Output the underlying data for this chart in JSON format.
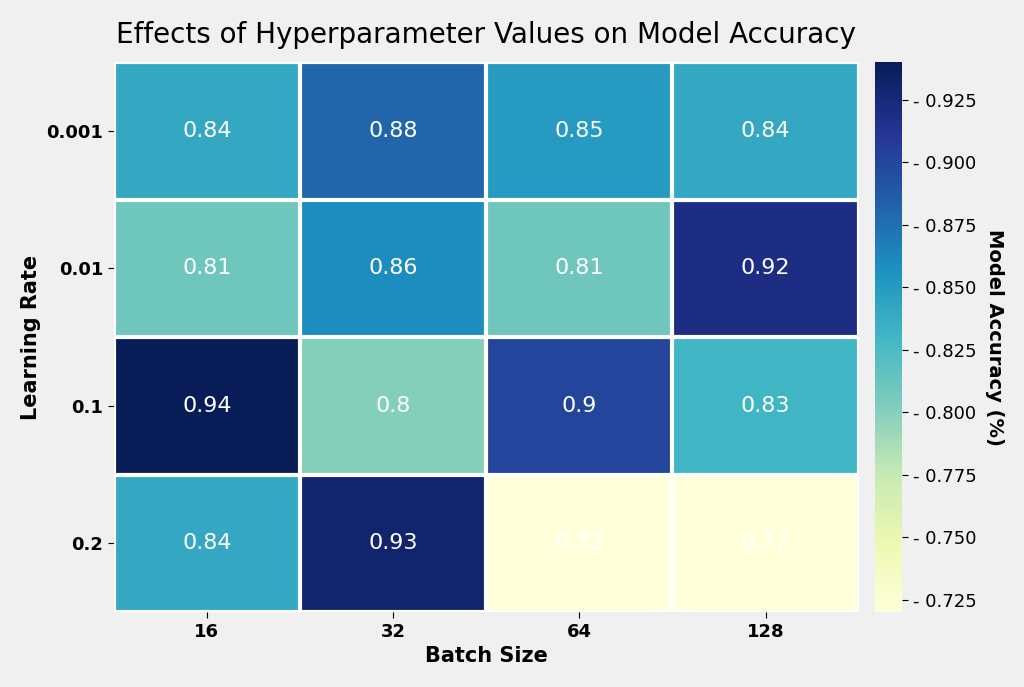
{
  "title": "Effects of Hyperparameter Values on Model Accuracy",
  "xlabel": "Batch Size",
  "ylabel": "Learning Rate",
  "colorbar_label": "Model Accuracy (%)",
  "batch_sizes": [
    "16",
    "32",
    "64",
    "128"
  ],
  "learning_rates": [
    "0.001",
    "0.01",
    "0.1",
    "0.2"
  ],
  "values": [
    [
      0.84,
      0.88,
      0.85,
      0.84
    ],
    [
      0.81,
      0.86,
      0.81,
      0.92
    ],
    [
      0.94,
      0.8,
      0.9,
      0.83
    ],
    [
      0.84,
      0.93,
      0.72,
      0.72
    ]
  ],
  "annot_labels": [
    [
      "0.84",
      "0.88",
      "0.85",
      "0.84"
    ],
    [
      "0.81",
      "0.86",
      "0.81",
      "0.92"
    ],
    [
      "0.94",
      "0.8",
      "0.9",
      "0.83"
    ],
    [
      "0.84",
      "0.93",
      "0.72",
      "0.72"
    ]
  ],
  "cmap": "YlGnBu",
  "vmin": 0.72,
  "vmax": 0.94,
  "title_fontsize": 20,
  "label_fontsize": 15,
  "tick_fontsize": 13,
  "annot_fontsize": 16,
  "colorbar_tick_fontsize": 13,
  "colorbar_label_fontsize": 14,
  "cbar_ticks": [
    0.725,
    0.75,
    0.775,
    0.8,
    0.825,
    0.85,
    0.875,
    0.9,
    0.925
  ],
  "fig_facecolor": "#f0f0f0",
  "linewidth": 3
}
